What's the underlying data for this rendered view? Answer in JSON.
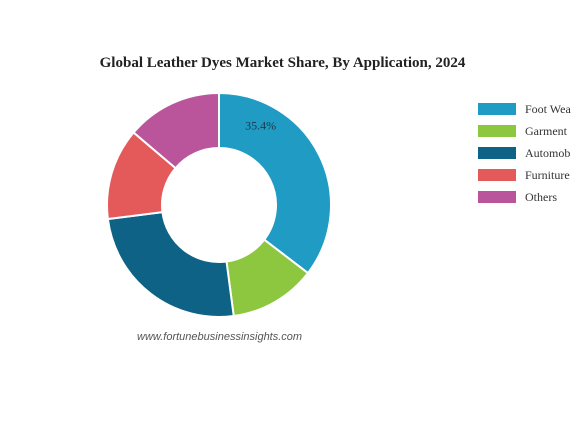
{
  "chart_data": {
    "type": "pie",
    "variant": "donut",
    "title": "Global Leather Dyes Market Share, By Application, 2024",
    "categories": [
      "Foot Wea",
      "Garment",
      "Automob",
      "Furniture",
      "Others"
    ],
    "values": [
      35.4,
      12.5,
      25.1,
      13.2,
      13.8
    ],
    "colors": [
      "#1f9bc4",
      "#8dc63f",
      "#0e6285",
      "#e45a5a",
      "#bb559b"
    ],
    "data_labels": [
      {
        "category": "Foot Wea",
        "text": "35.4%"
      }
    ],
    "legend_position": "right",
    "source": "www.fortunebusinessinsights.com"
  }
}
